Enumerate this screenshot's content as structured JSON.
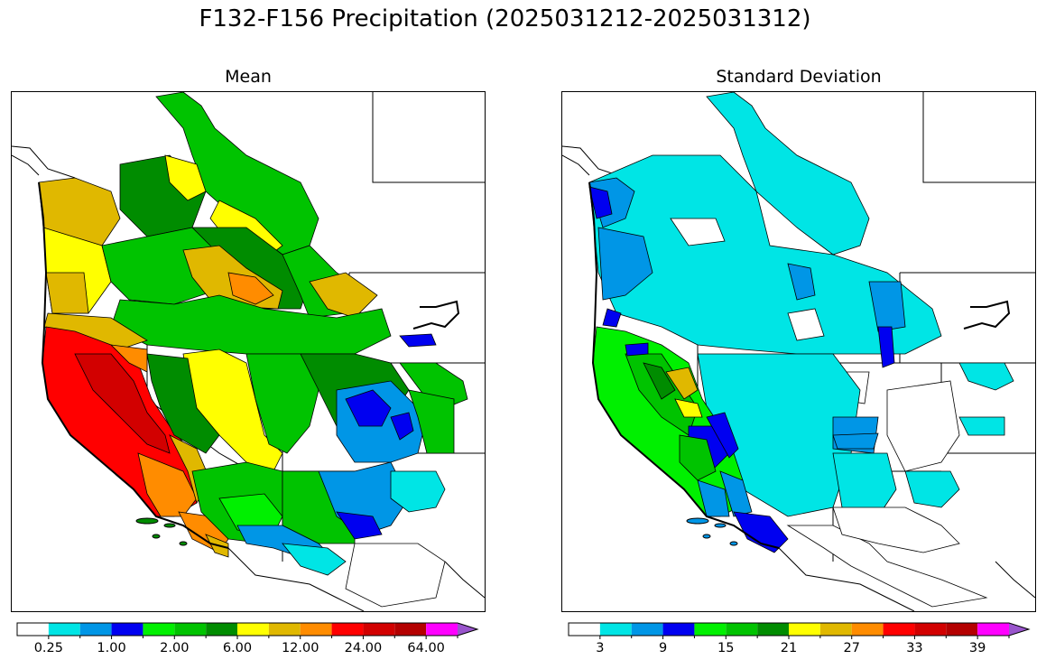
{
  "title": "F132-F156 Precipitation (2025031212-2025031312)",
  "panels": [
    {
      "id": "mean",
      "title": "Mean",
      "colorbar": {
        "colors": [
          "#ffffff",
          "#00e5e5",
          "#0096e6",
          "#0000f0",
          "#00f000",
          "#00c300",
          "#008c00",
          "#ffff00",
          "#e0b800",
          "#ff8c00",
          "#ff0000",
          "#d20000",
          "#b40000",
          "#ff00ff",
          "#9955cc"
        ],
        "tick_labels": [
          "0.25",
          "1.00",
          "2.00",
          "6.00",
          "12.00",
          "24.00",
          "64.00"
        ],
        "extend": "max"
      }
    },
    {
      "id": "std",
      "title": "Standard Deviation",
      "colorbar": {
        "colors": [
          "#ffffff",
          "#00e5e5",
          "#0096e6",
          "#0000f0",
          "#00f000",
          "#00c300",
          "#008c00",
          "#ffff00",
          "#e0b800",
          "#ff8c00",
          "#ff0000",
          "#d20000",
          "#b40000",
          "#ff00ff",
          "#9955cc"
        ],
        "tick_labels": [
          "3",
          "9",
          "15",
          "21",
          "27",
          "33",
          "39"
        ],
        "extend": "max"
      }
    }
  ]
}
